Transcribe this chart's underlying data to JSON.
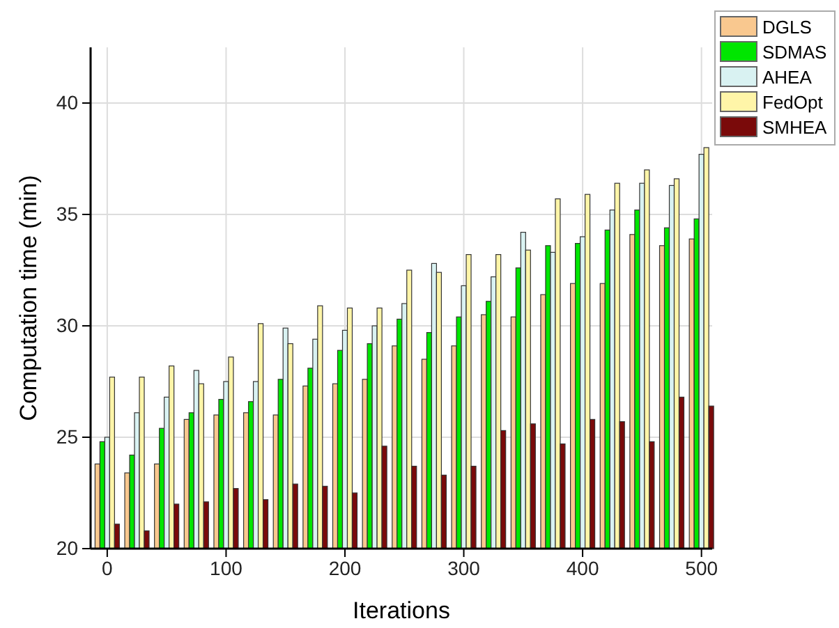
{
  "chart_data": {
    "type": "bar",
    "xlabel": "Iterations",
    "ylabel": "Computation time (min)",
    "x": [
      0,
      25,
      50,
      75,
      100,
      125,
      150,
      175,
      200,
      225,
      250,
      275,
      300,
      325,
      350,
      375,
      400,
      425,
      450,
      475,
      500
    ],
    "series": [
      {
        "name": "DGLS",
        "color": "#f9c88f",
        "values": [
          23.8,
          23.4,
          23.8,
          25.8,
          26.0,
          26.1,
          26.0,
          27.3,
          27.4,
          27.6,
          29.1,
          28.5,
          29.1,
          30.5,
          30.4,
          31.4,
          31.9,
          31.9,
          34.1,
          33.6,
          33.9
        ]
      },
      {
        "name": "SDMAS",
        "color": "#00e600",
        "values": [
          24.8,
          24.2,
          25.4,
          26.1,
          26.7,
          26.6,
          27.6,
          28.1,
          28.9,
          29.2,
          30.3,
          29.7,
          30.4,
          31.1,
          32.6,
          33.6,
          33.7,
          34.3,
          35.2,
          34.4,
          34.8
        ]
      },
      {
        "name": "AHEA",
        "color": "#d9f2f2",
        "values": [
          25.0,
          26.1,
          26.8,
          28.0,
          27.5,
          27.5,
          29.9,
          29.4,
          29.8,
          30.0,
          31.0,
          32.8,
          31.8,
          32.2,
          34.2,
          33.3,
          34.0,
          35.2,
          36.4,
          36.3,
          37.7
        ]
      },
      {
        "name": "FedOpt",
        "color": "#fff5a8",
        "values": [
          27.7,
          27.7,
          28.2,
          27.4,
          28.6,
          30.1,
          29.2,
          30.9,
          30.8,
          30.8,
          32.5,
          32.4,
          33.2,
          33.2,
          33.4,
          35.7,
          35.9,
          36.4,
          37.0,
          36.6,
          38.0
        ]
      },
      {
        "name": "SMHEA",
        "color": "#7a0a0a",
        "values": [
          21.1,
          20.8,
          22.0,
          22.1,
          22.7,
          22.2,
          22.9,
          22.8,
          22.5,
          24.6,
          23.7,
          23.3,
          23.7,
          25.3,
          25.6,
          24.7,
          25.8,
          25.7,
          24.8,
          26.8,
          26.4
        ]
      }
    ],
    "xlim": [
      -14,
      509
    ],
    "xticks": [
      0,
      100,
      200,
      300,
      400,
      500
    ],
    "ylim": [
      20,
      42.5
    ],
    "yticks": [
      20,
      25,
      30,
      35,
      40
    ],
    "grid": true,
    "legend": "top right"
  }
}
